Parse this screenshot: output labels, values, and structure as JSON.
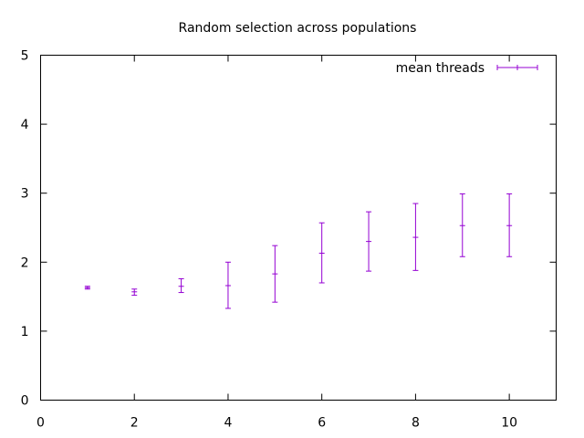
{
  "chart_data": {
    "type": "scatter",
    "title": "Random selection across populations",
    "xlabel": "",
    "ylabel": "",
    "xlim": [
      0,
      11
    ],
    "ylim": [
      0,
      5
    ],
    "x_ticks": [
      0,
      2,
      4,
      6,
      8,
      10
    ],
    "y_ticks": [
      0,
      1,
      2,
      3,
      4,
      5
    ],
    "grid": false,
    "legend_position": "top-right",
    "series": [
      {
        "name": "mean threads",
        "color": "#9400d3",
        "style": "yerrorbars",
        "points": [
          {
            "x": 1,
            "y": 1.63,
            "low": 1.61,
            "high": 1.65
          },
          {
            "x": 2,
            "y": 1.57,
            "low": 1.52,
            "high": 1.61
          },
          {
            "x": 3,
            "y": 1.65,
            "low": 1.56,
            "high": 1.76
          },
          {
            "x": 4,
            "y": 1.66,
            "low": 1.33,
            "high": 2.0
          },
          {
            "x": 5,
            "y": 1.83,
            "low": 1.42,
            "high": 2.24
          },
          {
            "x": 6,
            "y": 2.13,
            "low": 1.7,
            "high": 2.57
          },
          {
            "x": 7,
            "y": 2.3,
            "low": 1.87,
            "high": 2.73
          },
          {
            "x": 8,
            "y": 2.36,
            "low": 1.88,
            "high": 2.85
          },
          {
            "x": 9,
            "y": 2.53,
            "low": 2.08,
            "high": 2.99
          },
          {
            "x": 10,
            "y": 2.53,
            "low": 2.08,
            "high": 2.99
          }
        ]
      }
    ]
  }
}
